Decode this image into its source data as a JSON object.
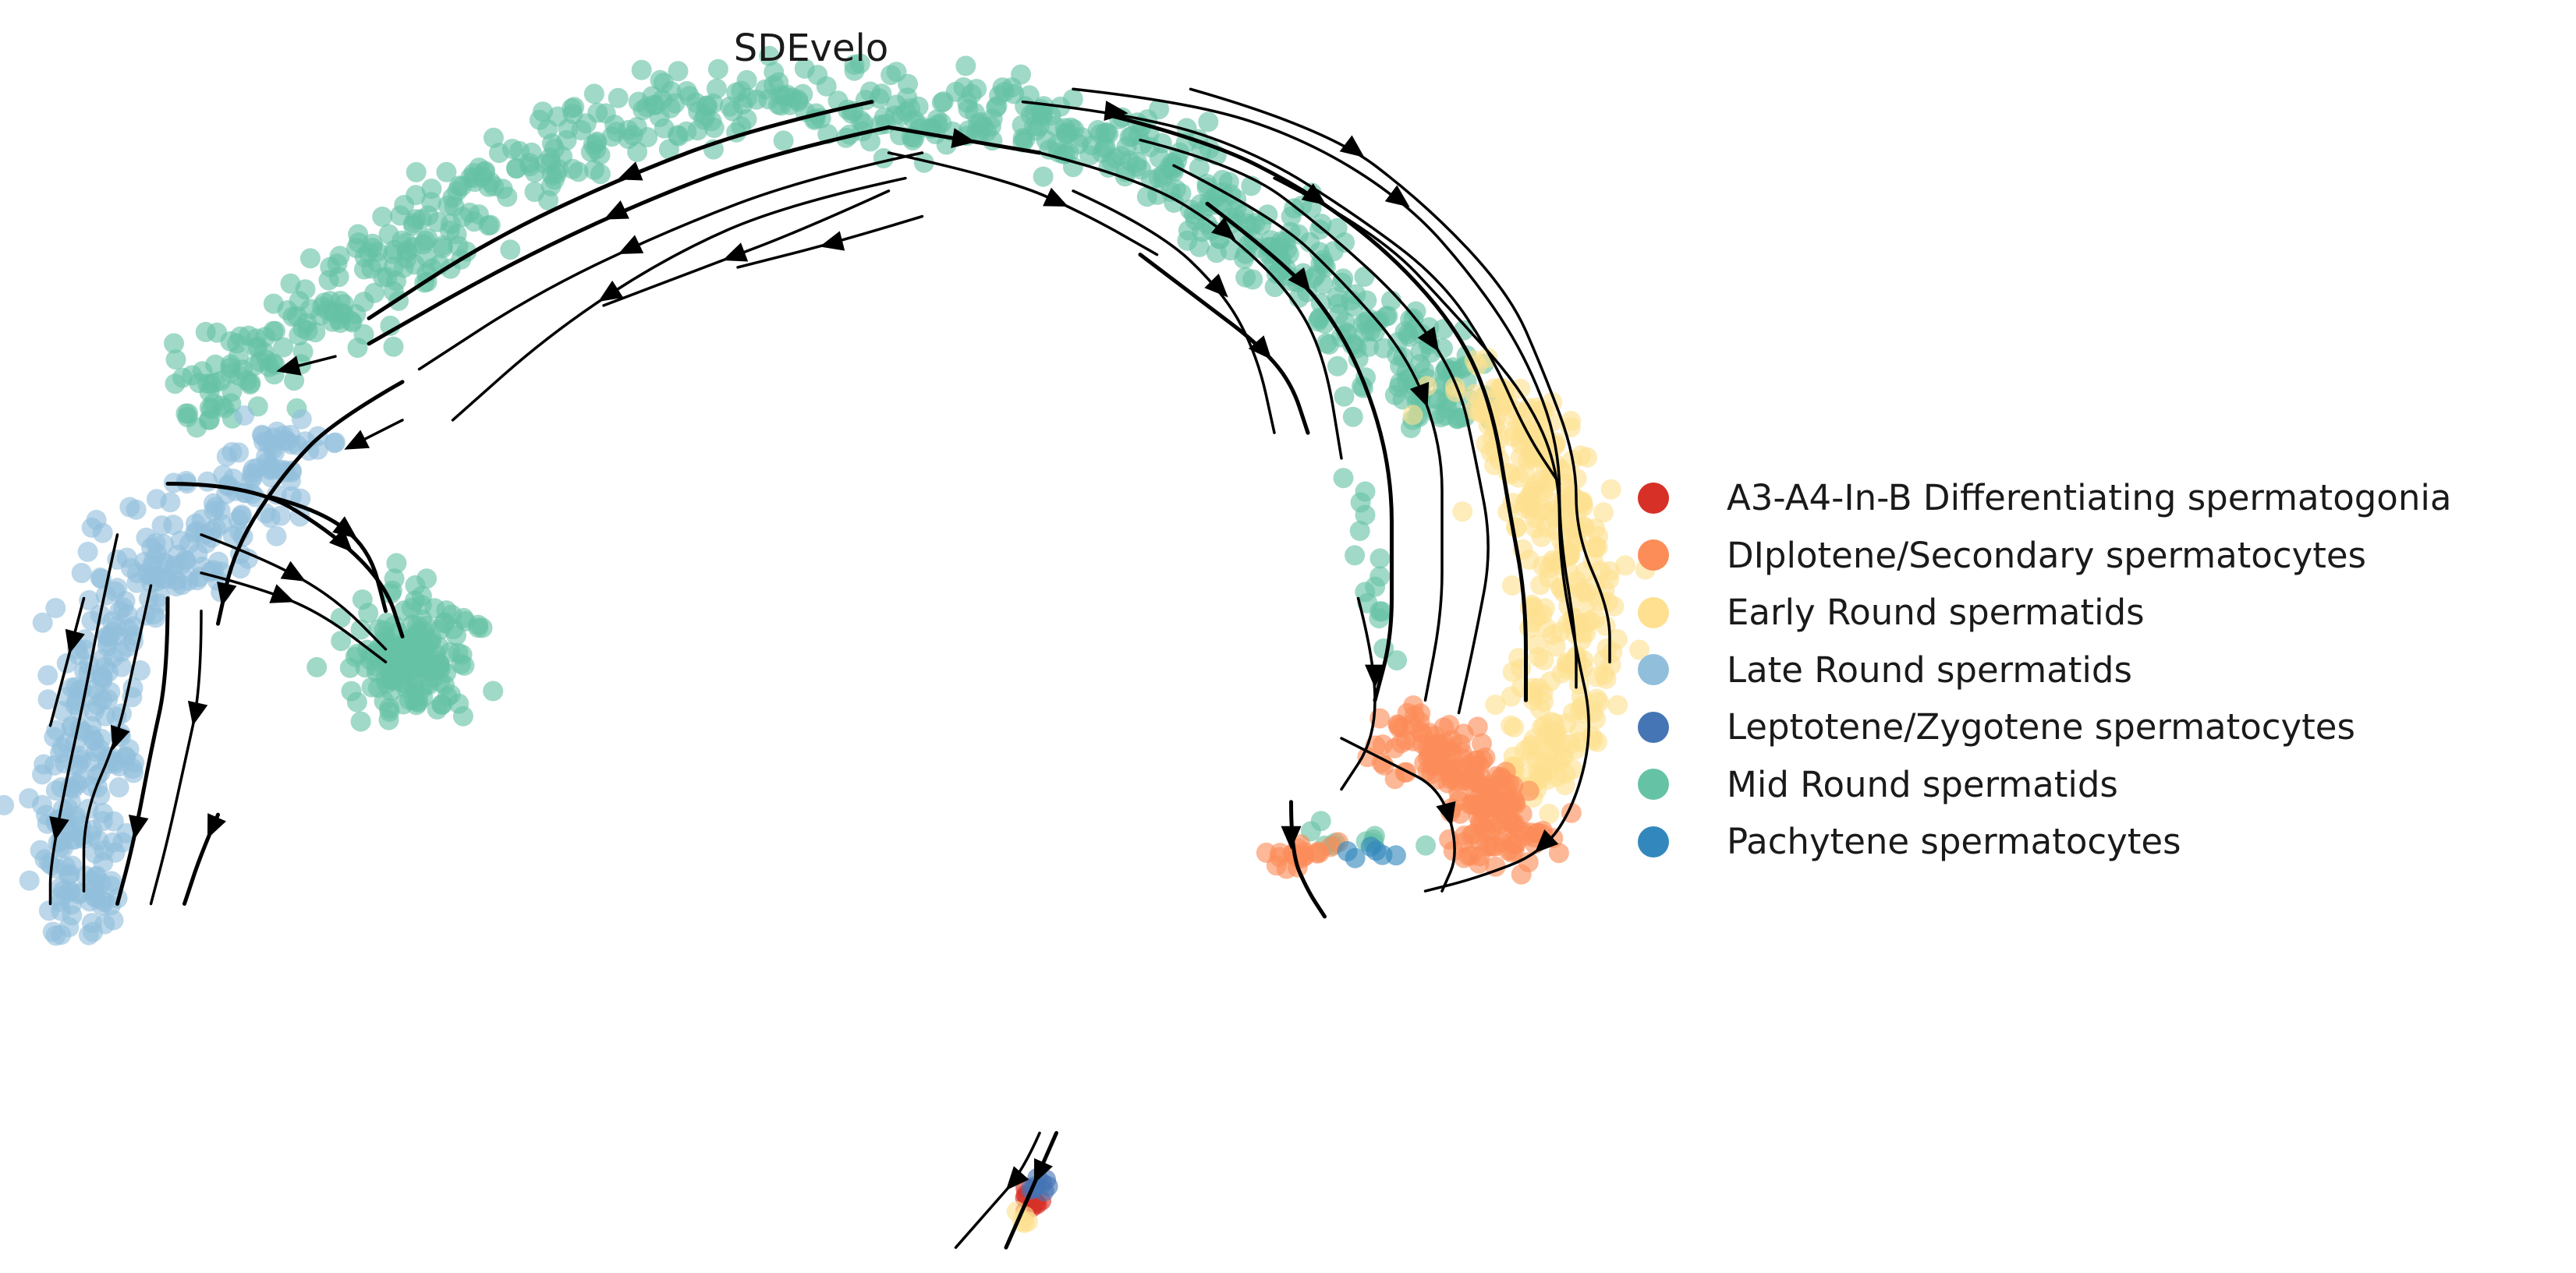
{
  "chart_data": {
    "type": "scatter",
    "subtype": "embedding-with-velocity-streamlines",
    "title": "SDEvelo",
    "xlabel": "",
    "ylabel": "",
    "axes_visible": false,
    "grid": false,
    "legend_position": "right",
    "xlim": [
      0,
      100
    ],
    "ylim": [
      0,
      100
    ],
    "series": [
      {
        "name": "A3-A4-In-B Differentiating spermatogonia",
        "color": "#d73027"
      },
      {
        "name": "DIplotene/Secondary spermatocytes",
        "color": "#fc8d59"
      },
      {
        "name": "Early Round spermatids",
        "color": "#fee090"
      },
      {
        "name": "Late Round spermatids",
        "color": "#91bfdb"
      },
      {
        "name": "Leptotene/Zygotene spermatocytes",
        "color": "#4575b4"
      },
      {
        "name": "Mid Round spermatids",
        "color": "#66c2a5"
      },
      {
        "name": "Pachytene spermatocytes",
        "color": "#3288bd"
      }
    ],
    "regions": [
      {
        "series": 5,
        "shape": "path",
        "path": [
          [
            53,
            9
          ],
          [
            47,
            8
          ],
          [
            38,
            9
          ],
          [
            30,
            14
          ],
          [
            22,
            22
          ],
          [
            15,
            28
          ],
          [
            12,
            32
          ]
        ],
        "spread": 3.2,
        "count": 340
      },
      {
        "series": 5,
        "shape": "path",
        "path": [
          [
            53,
            9
          ],
          [
            60,
            9
          ],
          [
            68,
            12
          ],
          [
            75,
            18
          ],
          [
            80,
            24
          ],
          [
            84,
            28
          ],
          [
            86,
            33
          ]
        ],
        "spread": 3.2,
        "count": 360
      },
      {
        "series": 5,
        "shape": "blob",
        "center": [
          24.5,
          51.5
        ],
        "rx": 3.4,
        "ry": 4.2,
        "count": 170
      },
      {
        "series": 5,
        "shape": "path",
        "path": [
          [
            80,
            31
          ],
          [
            81,
            40
          ],
          [
            82,
            48
          ],
          [
            83,
            55
          ]
        ],
        "spread": 0.8,
        "count": 18
      },
      {
        "series": 5,
        "shape": "path",
        "path": [
          [
            79,
            66
          ],
          [
            83,
            66
          ],
          [
            86,
            67
          ]
        ],
        "spread": 0.8,
        "count": 10
      },
      {
        "series": 3,
        "shape": "path",
        "path": [
          [
            18,
            34
          ],
          [
            13,
            40
          ],
          [
            8,
            46
          ],
          [
            6,
            53
          ],
          [
            5,
            60
          ],
          [
            4,
            67
          ],
          [
            5,
            72
          ]
        ],
        "spread": 3.3,
        "count": 360
      },
      {
        "series": 2,
        "shape": "path",
        "path": [
          [
            88,
            30
          ],
          [
            92,
            36
          ],
          [
            94,
            43
          ],
          [
            94,
            50
          ],
          [
            93,
            57
          ],
          [
            91,
            63
          ]
        ],
        "spread": 3.0,
        "count": 330
      },
      {
        "series": 1,
        "shape": "path",
        "path": [
          [
            84,
            57
          ],
          [
            87,
            61
          ],
          [
            91,
            65
          ],
          [
            88,
            67
          ]
        ],
        "spread": 2.4,
        "count": 190
      },
      {
        "series": 1,
        "shape": "path",
        "path": [
          [
            76,
            67
          ],
          [
            79,
            67
          ]
        ],
        "spread": 1.0,
        "count": 20
      },
      {
        "series": 6,
        "shape": "path",
        "path": [
          [
            80,
            67
          ],
          [
            83,
            67
          ]
        ],
        "spread": 0.6,
        "count": 6
      },
      {
        "series": 0,
        "shape": "blob",
        "center": [
          61.5,
          94.3
        ],
        "rx": 0.7,
        "ry": 0.9,
        "count": 10
      },
      {
        "series": 4,
        "shape": "blob",
        "center": [
          62.0,
          93.2
        ],
        "rx": 0.8,
        "ry": 1.2,
        "count": 8
      },
      {
        "series": 2,
        "shape": "blob",
        "center": [
          61.0,
          95.7
        ],
        "rx": 0.6,
        "ry": 0.7,
        "count": 5
      }
    ],
    "streamlines": [
      {
        "points": [
          [
            53,
            10
          ],
          [
            46,
            12
          ],
          [
            38,
            16
          ],
          [
            30,
            21
          ],
          [
            22,
            27
          ]
        ],
        "arrow_at": 0.5
      },
      {
        "points": [
          [
            55,
            12
          ],
          [
            48,
            14
          ],
          [
            40,
            18
          ],
          [
            32,
            23
          ],
          [
            25,
            29
          ]
        ],
        "arrow_at": 0.55
      },
      {
        "points": [
          [
            54,
            14
          ],
          [
            47,
            16
          ],
          [
            40,
            20
          ],
          [
            33,
            26
          ],
          [
            27,
            33
          ]
        ],
        "arrow_at": 0.6
      },
      {
        "points": [
          [
            52,
            8
          ],
          [
            45,
            10
          ],
          [
            37,
            14
          ],
          [
            29,
            19
          ],
          [
            22,
            25
          ]
        ],
        "arrow_at": 0.45
      },
      {
        "points": [
          [
            53,
            15
          ],
          [
            48,
            18
          ],
          [
            42,
            21
          ],
          [
            36,
            24
          ]
        ],
        "arrow_at": 0.55
      },
      {
        "points": [
          [
            55,
            17
          ],
          [
            50,
            19
          ],
          [
            44,
            21
          ]
        ],
        "arrow_at": 0.5
      },
      {
        "points": [
          [
            24,
            30
          ],
          [
            20,
            33
          ],
          [
            17,
            37
          ],
          [
            14,
            43
          ],
          [
            13,
            49
          ]
        ],
        "arrow_at": 0.9
      },
      {
        "points": [
          [
            20,
            28
          ],
          [
            17,
            29
          ]
        ],
        "arrow_at": 0.95
      },
      {
        "points": [
          [
            24,
            33
          ],
          [
            21,
            35
          ]
        ],
        "arrow_at": 0.95
      },
      {
        "points": [
          [
            10,
            38
          ],
          [
            15,
            38
          ],
          [
            20,
            42
          ],
          [
            23,
            46
          ],
          [
            24,
            50
          ]
        ],
        "arrow_at": 0.6
      },
      {
        "points": [
          [
            12,
            42
          ],
          [
            16,
            44
          ],
          [
            20,
            47
          ],
          [
            23,
            51
          ]
        ],
        "arrow_at": 0.45
      },
      {
        "points": [
          [
            12,
            45
          ],
          [
            15,
            46
          ],
          [
            19,
            48
          ],
          [
            23,
            52
          ]
        ],
        "arrow_at": 0.4
      },
      {
        "points": [
          [
            16,
            39
          ],
          [
            19,
            40
          ],
          [
            22,
            43
          ],
          [
            23,
            48
          ]
        ],
        "arrow_at": 0.45
      },
      {
        "points": [
          [
            7,
            42
          ],
          [
            6,
            48
          ],
          [
            5,
            55
          ],
          [
            4,
            61
          ],
          [
            3,
            68
          ],
          [
            3,
            71
          ]
        ],
        "arrow_at": 0.8
      },
      {
        "points": [
          [
            9,
            46
          ],
          [
            8,
            52
          ],
          [
            7,
            58
          ],
          [
            5,
            64
          ],
          [
            5,
            70
          ]
        ],
        "arrow_at": 0.5
      },
      {
        "points": [
          [
            10,
            47
          ],
          [
            10,
            53
          ],
          [
            9,
            59
          ],
          [
            8,
            66
          ],
          [
            7,
            71
          ]
        ],
        "arrow_at": 0.75
      },
      {
        "points": [
          [
            12,
            48
          ],
          [
            12,
            54
          ],
          [
            11,
            60
          ],
          [
            10,
            66
          ],
          [
            9,
            71
          ]
        ],
        "arrow_at": 0.35
      },
      {
        "points": [
          [
            5,
            47
          ],
          [
            4,
            52
          ],
          [
            3,
            57
          ]
        ],
        "arrow_at": 0.35
      },
      {
        "points": [
          [
            13,
            64
          ],
          [
            12,
            67
          ],
          [
            11,
            71
          ]
        ],
        "arrow_at": 0.15
      },
      {
        "points": [
          [
            61,
            8
          ],
          [
            68,
            9
          ],
          [
            75,
            12
          ],
          [
            81,
            17
          ],
          [
            86,
            22
          ],
          [
            89,
            28
          ],
          [
            91,
            34
          ],
          [
            93,
            38
          ]
        ],
        "arrow_at": 0.12
      },
      {
        "points": [
          [
            64,
            7
          ],
          [
            71,
            8
          ],
          [
            78,
            11
          ],
          [
            84,
            16
          ],
          [
            88,
            22
          ],
          [
            91,
            28
          ],
          [
            93,
            35
          ],
          [
            93,
            42
          ],
          [
            94,
            50
          ],
          [
            94,
            54
          ]
        ],
        "arrow_at": 0.35
      },
      {
        "points": [
          [
            66,
            9
          ],
          [
            72,
            11
          ],
          [
            78,
            15
          ],
          [
            83,
            20
          ],
          [
            87,
            26
          ],
          [
            89,
            32
          ],
          [
            90,
            40
          ],
          [
            91,
            47
          ],
          [
            91,
            55
          ]
        ],
        "arrow_at": 0.25
      },
      {
        "points": [
          [
            68,
            11
          ],
          [
            74,
            13
          ],
          [
            79,
            18
          ],
          [
            84,
            24
          ],
          [
            87,
            30
          ],
          [
            88,
            36
          ],
          [
            89,
            43
          ],
          [
            88,
            50
          ],
          [
            87,
            56
          ]
        ],
        "arrow_at": 0.45
      },
      {
        "points": [
          [
            70,
            13
          ],
          [
            76,
            17
          ],
          [
            80,
            22
          ],
          [
            84,
            28
          ],
          [
            86,
            35
          ],
          [
            86,
            42
          ],
          [
            86,
            48
          ],
          [
            85,
            55
          ]
        ],
        "arrow_at": 0.5
      },
      {
        "points": [
          [
            72,
            16
          ],
          [
            77,
            21
          ],
          [
            80,
            26
          ],
          [
            82,
            32
          ],
          [
            83,
            38
          ],
          [
            83,
            44
          ],
          [
            83,
            50
          ],
          [
            82,
            55
          ]
        ],
        "arrow_at": 0.2
      },
      {
        "points": [
          [
            62,
            12
          ],
          [
            68,
            14
          ],
          [
            73,
            18
          ],
          [
            77,
            23
          ],
          [
            79,
            28
          ],
          [
            80,
            36
          ]
        ],
        "arrow_at": 0.4
      },
      {
        "points": [
          [
            64,
            15
          ],
          [
            69,
            18
          ],
          [
            73,
            23
          ],
          [
            75,
            28
          ],
          [
            76,
            34
          ]
        ],
        "arrow_at": 0.5
      },
      {
        "points": [
          [
            68,
            20
          ],
          [
            72,
            24
          ],
          [
            75,
            27
          ],
          [
            77,
            30
          ],
          [
            78,
            34
          ]
        ],
        "arrow_at": 0.6
      },
      {
        "points": [
          [
            76,
            14
          ],
          [
            82,
            18
          ],
          [
            87,
            25
          ],
          [
            91,
            31
          ],
          [
            93,
            37
          ],
          [
            93,
            44
          ],
          [
            94,
            51
          ],
          [
            95,
            57
          ],
          [
            94,
            63
          ],
          [
            92,
            67
          ],
          [
            88,
            69
          ],
          [
            85,
            70
          ]
        ],
        "arrow_at": 0.88
      },
      {
        "points": [
          [
            71,
            7
          ],
          [
            79,
            10
          ],
          [
            85,
            16
          ],
          [
            90,
            23
          ],
          [
            92,
            29
          ],
          [
            94,
            36
          ],
          [
            94,
            42
          ],
          [
            96,
            48
          ],
          [
            96,
            52
          ]
        ],
        "arrow_at": 0.2
      },
      {
        "points": [
          [
            53,
            10
          ],
          [
            62,
            12
          ]
        ],
        "arrow_at": 0.5
      },
      {
        "points": [
          [
            53,
            12
          ],
          [
            60,
            14
          ],
          [
            65,
            17
          ],
          [
            69,
            20
          ]
        ],
        "arrow_at": 0.6
      },
      {
        "points": [
          [
            80,
            58
          ],
          [
            83,
            60
          ],
          [
            86,
            62
          ],
          [
            87,
            67
          ],
          [
            86,
            70
          ]
        ],
        "arrow_at": 0.6
      },
      {
        "points": [
          [
            77,
            63
          ],
          [
            77,
            67
          ],
          [
            78,
            70
          ],
          [
            79,
            72
          ]
        ],
        "arrow_at": 0.3
      },
      {
        "points": [
          [
            81,
            47
          ],
          [
            82,
            52
          ],
          [
            82,
            58
          ],
          [
            80,
            62
          ]
        ],
        "arrow_at": 0.4
      },
      {
        "points": [
          [
            62,
            89
          ],
          [
            61,
            92
          ],
          [
            59,
            95
          ],
          [
            57,
            98
          ]
        ],
        "arrow_at": 0.4
      },
      {
        "points": [
          [
            63,
            89
          ],
          [
            62,
            92
          ],
          [
            61,
            95
          ],
          [
            60,
            98
          ]
        ],
        "arrow_at": 0.35
      }
    ]
  }
}
